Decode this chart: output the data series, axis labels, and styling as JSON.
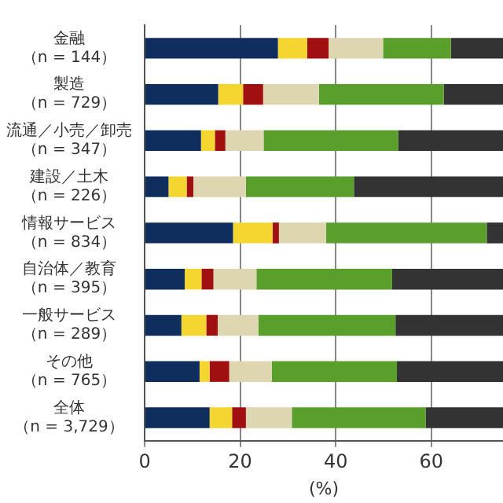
{
  "chart_data": {
    "type": "bar",
    "orientation": "horizontal",
    "stacked": true,
    "xlabel": "(%)",
    "categories": [
      "金融（n = 144）",
      "製造（n = 729）",
      "流通／小売／卸売（n = 347）",
      "建設／土木（n = 226）",
      "情報サービス（n = 834）",
      "自治体／教育（n = 395）",
      "一般サービス（n = 289）",
      "その他（n = 765）",
      "全体（n = 3,729）"
    ],
    "series": [
      {
        "color": "#0f2e5e",
        "values": [
          27.9,
          15.4,
          11.8,
          5.0,
          18.5,
          8.4,
          7.7,
          11.5,
          13.6
        ]
      },
      {
        "color": "#f5d630",
        "values": [
          6.1,
          5.2,
          2.9,
          3.8,
          8.3,
          3.5,
          5.2,
          2.1,
          4.7
        ]
      },
      {
        "color": "#a01010",
        "values": [
          4.5,
          4.2,
          2.2,
          1.4,
          1.3,
          2.5,
          2.4,
          4.1,
          2.9
        ]
      },
      {
        "color": "#ddd6b0",
        "values": [
          11.4,
          11.7,
          8.0,
          11.0,
          9.9,
          9.0,
          8.5,
          8.9,
          9.6
        ]
      },
      {
        "color": "#5a9e2c",
        "values": [
          14.2,
          26.1,
          28.2,
          22.6,
          33.6,
          28.4,
          28.7,
          26.2,
          28.0
        ]
      },
      {
        "color": "#333333",
        "values": [
          10.9,
          12.4,
          21.9,
          31.2,
          3.4,
          23.2,
          22.5,
          22.2,
          16.2
        ]
      }
    ],
    "xlim": [
      0,
      75
    ],
    "xticks": [
      0,
      20,
      40,
      60
    ],
    "grid": "x",
    "legend": false
  }
}
